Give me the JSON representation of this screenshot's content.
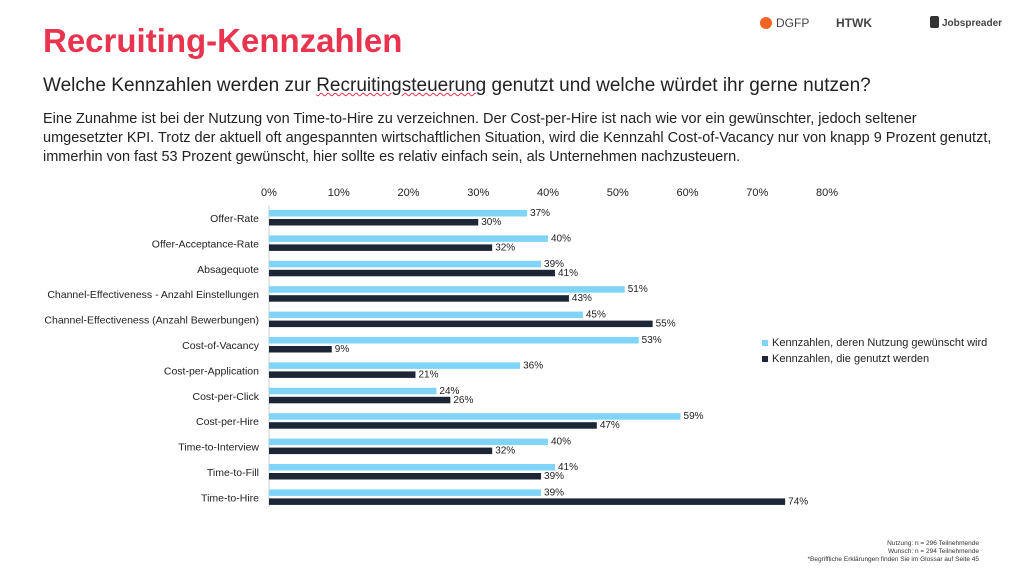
{
  "title": "Recruiting-Kennzahlen",
  "subtitle": {
    "pre": "Welche Kennzahlen werden zur ",
    "u": "Recruitingsteuerung",
    "post": " genutzt und welche würdet ihr gerne nutzen?"
  },
  "body": "Eine Zunahme ist bei der Nutzung von Time-to-Hire zu verzeichnen. Der Cost-per-Hire ist nach wie vor ein gewünschter, jedoch seltener umgesetzter KPI. Trotz der aktuell oft angespannten wirtschaftlichen Situation, wird die Kennzahl Cost-of-Vacancy nur von knapp 9 Prozent genutzt, immerhin von fast 53 Prozent gewünscht, hier sollte es relativ einfach sein, als Unternehmen nachzusteuern.",
  "logos": {
    "dgfp": "DGFP",
    "htwk": "HTWK",
    "jobspreader": "Jobspreader"
  },
  "footnotes": [
    "Nutzung: n = 296 Teilnehmende",
    "Wunsch: n = 294 Teilnehmende",
    "*Begriffliche Erklärungen finden Sie im Glossar auf Seite 45"
  ],
  "colors": {
    "wish": "#7fd4f7",
    "used": "#1c2636",
    "title": "#e8344e"
  },
  "chart_data": {
    "type": "bar",
    "orientation": "horizontal",
    "xlim": [
      0,
      80
    ],
    "xticks": [
      "0%",
      "10%",
      "20%",
      "30%",
      "40%",
      "50%",
      "60%",
      "70%",
      "80%"
    ],
    "legend_position": "right",
    "categories": [
      "Offer-Rate",
      "Offer-Acceptance-Rate",
      "Absagequote",
      "Channel-Effectiveness - Anzahl Einstellungen",
      "Channel-Effectiveness (Anzahl Bewerbungen)",
      "Cost-of-Vacancy",
      "Cost-per-Application",
      "Cost-per-Click",
      "Cost-per-Hire",
      "Time-to-Interview",
      "Time-to-Fill",
      "Time-to-Hire"
    ],
    "series": [
      {
        "name": "Kennzahlen, deren Nutzung gewünscht wird",
        "values": [
          37,
          40,
          39,
          51,
          45,
          53,
          36,
          24,
          59,
          40,
          41,
          39
        ]
      },
      {
        "name": "Kennzahlen, die genutzt werden",
        "values": [
          30,
          32,
          41,
          43,
          55,
          9,
          21,
          26,
          47,
          32,
          39,
          74
        ]
      }
    ]
  }
}
